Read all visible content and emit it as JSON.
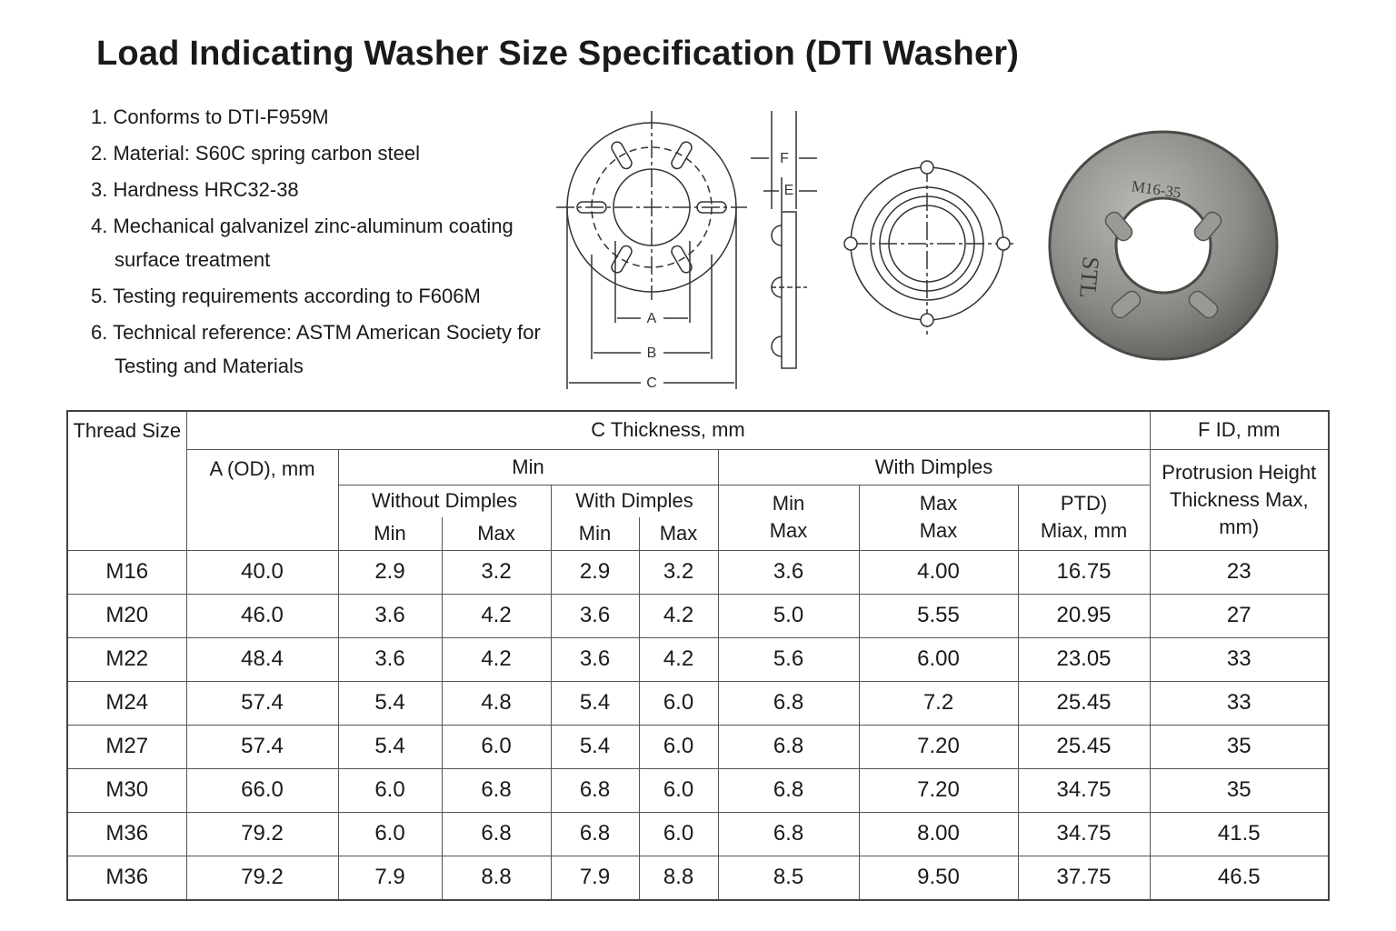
{
  "title": "Load Indicating Washer Size Specification (DTI Washer)",
  "notes": [
    "1. Conforms to DTI-F959M",
    "2. Material: S60C spring carbon steel",
    "3. Hardness HRC32-38",
    "4. Mechanical galvanizel zinc-aluminum coating surface treatment",
    "5. Testing requirements according to F606M",
    "6. Technical reference: ASTM American Society for Testing and Materials"
  ],
  "diagram_labels": {
    "a": "A",
    "b": "B",
    "c": "C",
    "e": "E",
    "f": "F"
  },
  "photo_marks": [
    "M16-35",
    "STL"
  ],
  "table": {
    "header": {
      "thread_size": "Thread Size",
      "c_thickness": "C Thickness, mm",
      "f_id": "F ID, mm",
      "a_od": "A (OD), mm",
      "min": "Min",
      "with_dimples_group": "With Dimples",
      "protrusion": "Protrusion Height Thickness Max, mm)",
      "without_dimples": "Without Dimples",
      "with_dimples": "With Dimples",
      "min_max": [
        "Min",
        "Max"
      ],
      "max_max": [
        "Max",
        "Max"
      ],
      "ptd": [
        "PTD)",
        "Miax, mm"
      ],
      "sub": [
        "Min",
        "Max",
        "Min",
        "Max"
      ]
    },
    "rows": [
      [
        "M16",
        "40.0",
        "2.9",
        "3.2",
        "2.9",
        "3.2",
        "3.6",
        "4.00",
        "16.75",
        "23"
      ],
      [
        "M20",
        "46.0",
        "3.6",
        "4.2",
        "3.6",
        "4.2",
        "5.0",
        "5.55",
        "20.95",
        "27"
      ],
      [
        "M22",
        "48.4",
        "3.6",
        "4.2",
        "3.6",
        "4.2",
        "5.6",
        "6.00",
        "23.05",
        "33"
      ],
      [
        "M24",
        "57.4",
        "5.4",
        "4.8",
        "5.4",
        "6.0",
        "6.8",
        "7.2",
        "25.45",
        "33"
      ],
      [
        "M27",
        "57.4",
        "5.4",
        "6.0",
        "5.4",
        "6.0",
        "6.8",
        "7.20",
        "25.45",
        "35"
      ],
      [
        "M30",
        "66.0",
        "6.0",
        "6.8",
        "6.8",
        "6.0",
        "6.8",
        "7.20",
        "34.75",
        "35"
      ],
      [
        "M36",
        "79.2",
        "6.0",
        "6.8",
        "6.8",
        "6.0",
        "6.8",
        "8.00",
        "34.75",
        "41.5"
      ],
      [
        "M36",
        "79.2",
        "7.9",
        "8.8",
        "7.9",
        "8.8",
        "8.5",
        "9.50",
        "37.75",
        "46.5"
      ]
    ]
  }
}
